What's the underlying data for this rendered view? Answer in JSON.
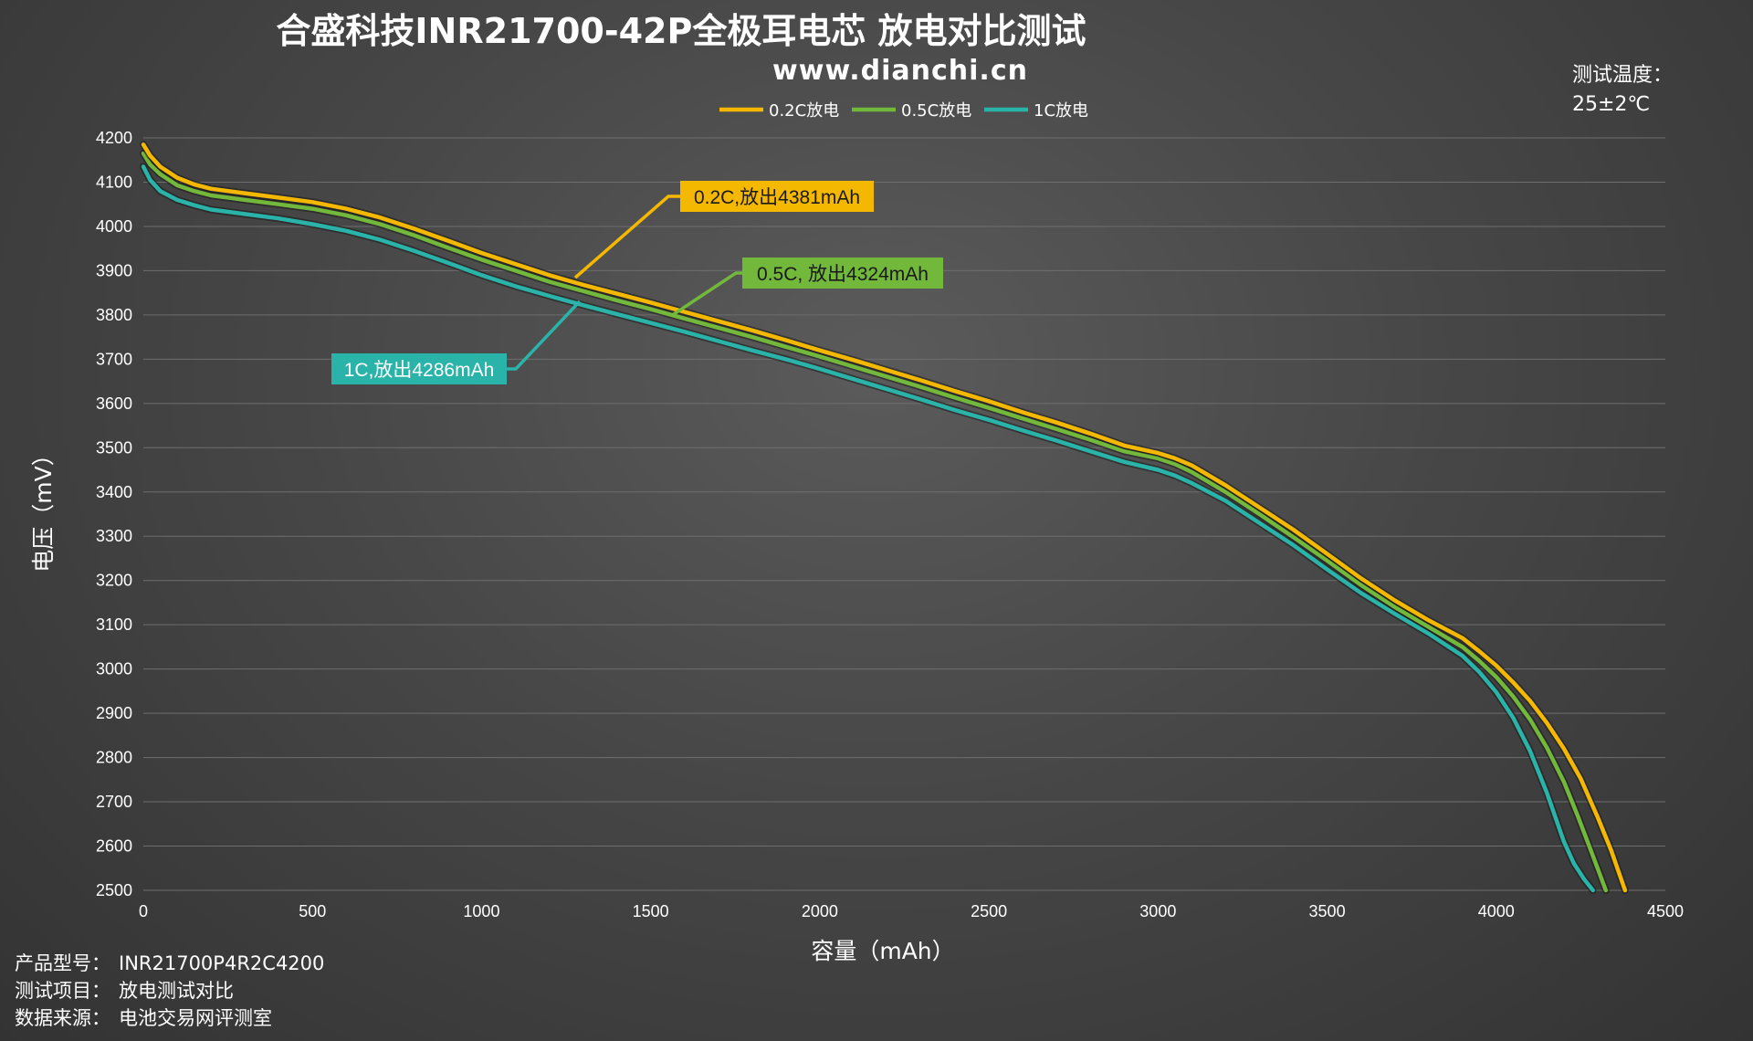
{
  "chart_data": {
    "type": "line",
    "title": "合盛科技INR21700-42P全极耳电芯 放电对比测试",
    "subtitle": "www.dianchi.cn",
    "xlabel": "容量（mAh）",
    "ylabel": "电压（mV）",
    "xlim": [
      0,
      4500
    ],
    "ylim": [
      2500,
      4200
    ],
    "x_ticks": [
      "0",
      "500",
      "1000",
      "1500",
      "2000",
      "2500",
      "3000",
      "3500",
      "4000",
      "4500"
    ],
    "y_ticks": [
      "2500",
      "2600",
      "2700",
      "2800",
      "2900",
      "3000",
      "3100",
      "3200",
      "3300",
      "3400",
      "3500",
      "3600",
      "3700",
      "3800",
      "3900",
      "4000",
      "4100",
      "4200"
    ],
    "grid": "horizontal",
    "legend_position": "top-center",
    "series": [
      {
        "name": "0.2C放电",
        "color": "#f5b800",
        "annotation": "0.2C,放出4381mAh",
        "x": [
          0,
          20,
          50,
          100,
          150,
          200,
          300,
          400,
          500,
          600,
          700,
          800,
          900,
          1000,
          1100,
          1200,
          1300,
          1400,
          1500,
          1600,
          1700,
          1800,
          1900,
          2000,
          2100,
          2200,
          2300,
          2400,
          2500,
          2600,
          2700,
          2800,
          2900,
          3000,
          3050,
          3100,
          3200,
          3300,
          3400,
          3500,
          3600,
          3700,
          3800,
          3900,
          3950,
          4000,
          4050,
          4100,
          4150,
          4200,
          4250,
          4300,
          4340,
          4381
        ],
        "y": [
          4185,
          4160,
          4135,
          4110,
          4095,
          4085,
          4075,
          4065,
          4055,
          4040,
          4020,
          3995,
          3968,
          3940,
          3915,
          3890,
          3868,
          3848,
          3828,
          3807,
          3786,
          3765,
          3743,
          3720,
          3698,
          3675,
          3652,
          3628,
          3605,
          3580,
          3557,
          3532,
          3505,
          3488,
          3476,
          3460,
          3415,
          3365,
          3315,
          3260,
          3205,
          3155,
          3110,
          3070,
          3040,
          3008,
          2970,
          2928,
          2878,
          2820,
          2752,
          2665,
          2590,
          2500
        ]
      },
      {
        "name": "0.5C放电",
        "color": "#72b83b",
        "annotation": "0.5C, 放出4324mAh",
        "x": [
          0,
          20,
          50,
          100,
          150,
          200,
          300,
          400,
          500,
          600,
          700,
          800,
          900,
          1000,
          1100,
          1200,
          1300,
          1400,
          1500,
          1600,
          1700,
          1800,
          1900,
          2000,
          2100,
          2200,
          2300,
          2400,
          2500,
          2600,
          2700,
          2800,
          2900,
          3000,
          3050,
          3100,
          3200,
          3300,
          3400,
          3500,
          3600,
          3700,
          3800,
          3900,
          3950,
          4000,
          4050,
          4100,
          4150,
          4200,
          4240,
          4280,
          4324
        ],
        "y": [
          4165,
          4140,
          4118,
          4093,
          4080,
          4070,
          4060,
          4050,
          4040,
          4025,
          4005,
          3980,
          3952,
          3925,
          3900,
          3875,
          3854,
          3833,
          3813,
          3792,
          3771,
          3750,
          3728,
          3706,
          3683,
          3660,
          3637,
          3613,
          3590,
          3566,
          3542,
          3518,
          3492,
          3476,
          3463,
          3445,
          3400,
          3350,
          3298,
          3245,
          3190,
          3140,
          3095,
          3050,
          3018,
          2982,
          2938,
          2886,
          2822,
          2745,
          2670,
          2590,
          2500
        ]
      },
      {
        "name": "1C放电",
        "color": "#2ab3a8",
        "annotation": "1C,放出4286mAh",
        "x": [
          0,
          20,
          50,
          100,
          150,
          200,
          300,
          400,
          500,
          600,
          700,
          800,
          900,
          1000,
          1100,
          1200,
          1300,
          1400,
          1500,
          1600,
          1700,
          1800,
          1900,
          2000,
          2100,
          2200,
          2300,
          2400,
          2500,
          2600,
          2700,
          2800,
          2900,
          3000,
          3050,
          3100,
          3200,
          3300,
          3400,
          3500,
          3600,
          3700,
          3800,
          3900,
          3950,
          4000,
          4050,
          4100,
          4150,
          4200,
          4230,
          4260,
          4286
        ],
        "y": [
          4135,
          4105,
          4080,
          4060,
          4048,
          4038,
          4028,
          4018,
          4005,
          3990,
          3970,
          3945,
          3918,
          3890,
          3865,
          3843,
          3822,
          3802,
          3782,
          3762,
          3741,
          3720,
          3700,
          3678,
          3655,
          3632,
          3609,
          3585,
          3563,
          3539,
          3516,
          3492,
          3468,
          3450,
          3437,
          3420,
          3380,
          3330,
          3280,
          3225,
          3172,
          3125,
          3080,
          3030,
          2993,
          2948,
          2890,
          2815,
          2720,
          2610,
          2560,
          2525,
          2500
        ]
      }
    ]
  },
  "temperature": {
    "label": "测试温度：",
    "value": "25±2℃"
  },
  "info": {
    "product_label": "产品型号：",
    "product_value": "INR21700P4R2C4200",
    "item_label": "测试项目：",
    "item_value": "放电测试对比",
    "source_label": "数据来源：",
    "source_value": "电池交易网评测室"
  }
}
